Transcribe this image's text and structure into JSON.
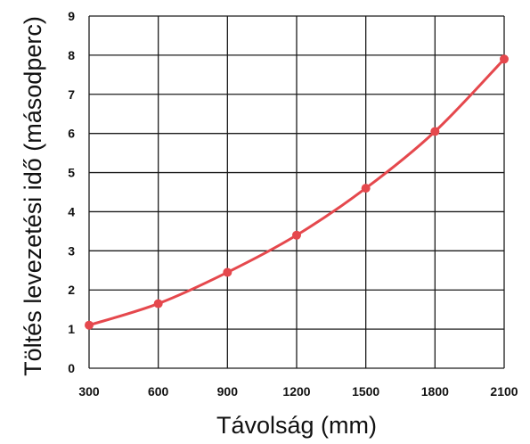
{
  "chart_data": {
    "type": "line",
    "xlabel": "Távolság (mm)",
    "ylabel": "Töltés levezetési idő (másodperc)",
    "x": [
      300,
      600,
      900,
      1200,
      1500,
      1800,
      2100
    ],
    "series": [
      {
        "values": [
          1.1,
          1.65,
          2.45,
          3.4,
          4.6,
          6.05,
          7.9
        ]
      }
    ],
    "xlim": [
      300,
      2100
    ],
    "ylim": [
      0,
      9
    ],
    "xticks": [
      "300",
      "600",
      "900",
      "1200",
      "1500",
      "1800",
      "2100"
    ],
    "yticks": [
      "0",
      "1",
      "2",
      "3",
      "4",
      "5",
      "6",
      "7",
      "8",
      "9"
    ],
    "grid": true,
    "line_color": "#e5484d"
  }
}
